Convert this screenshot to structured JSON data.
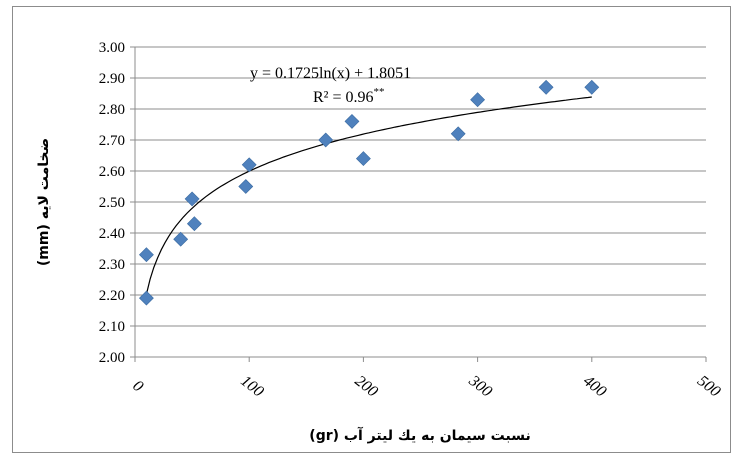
{
  "chart_data": {
    "type": "scatter",
    "xlabel": "نسبت سیمان به یك لیتر آب (gr)",
    "ylabel": "ضخامت لایه (mm)",
    "xlim": [
      0,
      500
    ],
    "ylim": [
      2.0,
      3.0
    ],
    "x_ticks": [
      "0",
      "100",
      "200",
      "300",
      "400",
      "500"
    ],
    "y_ticks": [
      "2.00",
      "2.10",
      "2.20",
      "2.30",
      "2.40",
      "2.50",
      "2.60",
      "2.70",
      "2.80",
      "2.90",
      "3.00"
    ],
    "grid": "horizontal",
    "marker": "diamond",
    "marker_color": "#4f81bd",
    "trend_color": "#000000",
    "series": [
      {
        "points": [
          {
            "x": 10,
            "y": 2.19
          },
          {
            "x": 10,
            "y": 2.33
          },
          {
            "x": 40,
            "y": 2.38
          },
          {
            "x": 50,
            "y": 2.51
          },
          {
            "x": 52,
            "y": 2.43
          },
          {
            "x": 97,
            "y": 2.55
          },
          {
            "x": 100,
            "y": 2.62
          },
          {
            "x": 167,
            "y": 2.7
          },
          {
            "x": 190,
            "y": 2.76
          },
          {
            "x": 200,
            "y": 2.64
          },
          {
            "x": 283,
            "y": 2.72
          },
          {
            "x": 300,
            "y": 2.83
          },
          {
            "x": 360,
            "y": 2.87
          },
          {
            "x": 400,
            "y": 2.87
          }
        ]
      }
    ],
    "trendline": {
      "type": "log",
      "a": 0.1725,
      "b": 1.8051,
      "x_range": [
        10,
        400
      ],
      "equation": "y = 0.1725ln(x) + 1.8051",
      "r2_label": "R² = 0.96",
      "r2_sup": "**"
    }
  }
}
